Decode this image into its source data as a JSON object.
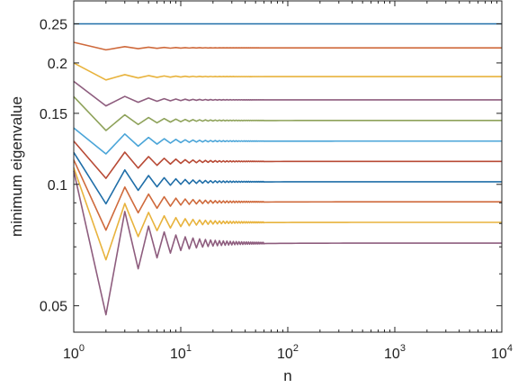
{
  "chart_data": {
    "type": "line",
    "xlabel": "n",
    "ylabel": "minimum eigenvalue",
    "x_scale": "log",
    "y_scale": "log",
    "xlim": [
      1,
      10000
    ],
    "ylim": [
      0.043,
      0.285
    ],
    "x_ticks": [
      {
        "value": 1,
        "base": "10",
        "exp": "0"
      },
      {
        "value": 10,
        "base": "10",
        "exp": "1"
      },
      {
        "value": 100,
        "base": "10",
        "exp": "2"
      },
      {
        "value": 1000,
        "base": "10",
        "exp": "3"
      },
      {
        "value": 10000,
        "base": "10",
        "exp": "4"
      }
    ],
    "y_ticks": [
      {
        "value": 0.25,
        "label": "0.25"
      },
      {
        "value": 0.2,
        "label": "0.2"
      },
      {
        "value": 0.15,
        "label": "0.15"
      },
      {
        "value": 0.1,
        "label": "0.1"
      },
      {
        "value": 0.05,
        "label": "0.05"
      }
    ],
    "grid": false,
    "legend": "none",
    "series": [
      {
        "color": "#1f6ea8",
        "start": 0.25,
        "dip": 0.25,
        "limit": 0.25
      },
      {
        "color": "#cf6a3c",
        "start": 0.225,
        "dip": 0.2155,
        "limit": 0.218
      },
      {
        "color": "#e8b33d",
        "start": 0.2,
        "dip": 0.1815,
        "limit": 0.185
      },
      {
        "color": "#8e5d7e",
        "start": 0.18,
        "dip": 0.1565,
        "limit": 0.162
      },
      {
        "color": "#8ea25a",
        "start": 0.165,
        "dip": 0.136,
        "limit": 0.144
      },
      {
        "color": "#4ba5d8",
        "start": 0.138,
        "dip": 0.119,
        "limit": 0.128
      },
      {
        "color": "#b84a35",
        "start": 0.128,
        "dip": 0.1035,
        "limit": 0.114
      },
      {
        "color": "#1f6ea8",
        "start": 0.12,
        "dip": 0.0895,
        "limit": 0.1015
      },
      {
        "color": "#cf6a3c",
        "start": 0.115,
        "dip": 0.077,
        "limit": 0.0905
      },
      {
        "color": "#e8b33d",
        "start": 0.11,
        "dip": 0.065,
        "limit": 0.0805
      },
      {
        "color": "#8e5d7e",
        "start": 0.108,
        "dip": 0.0475,
        "limit": 0.0715
      }
    ]
  }
}
